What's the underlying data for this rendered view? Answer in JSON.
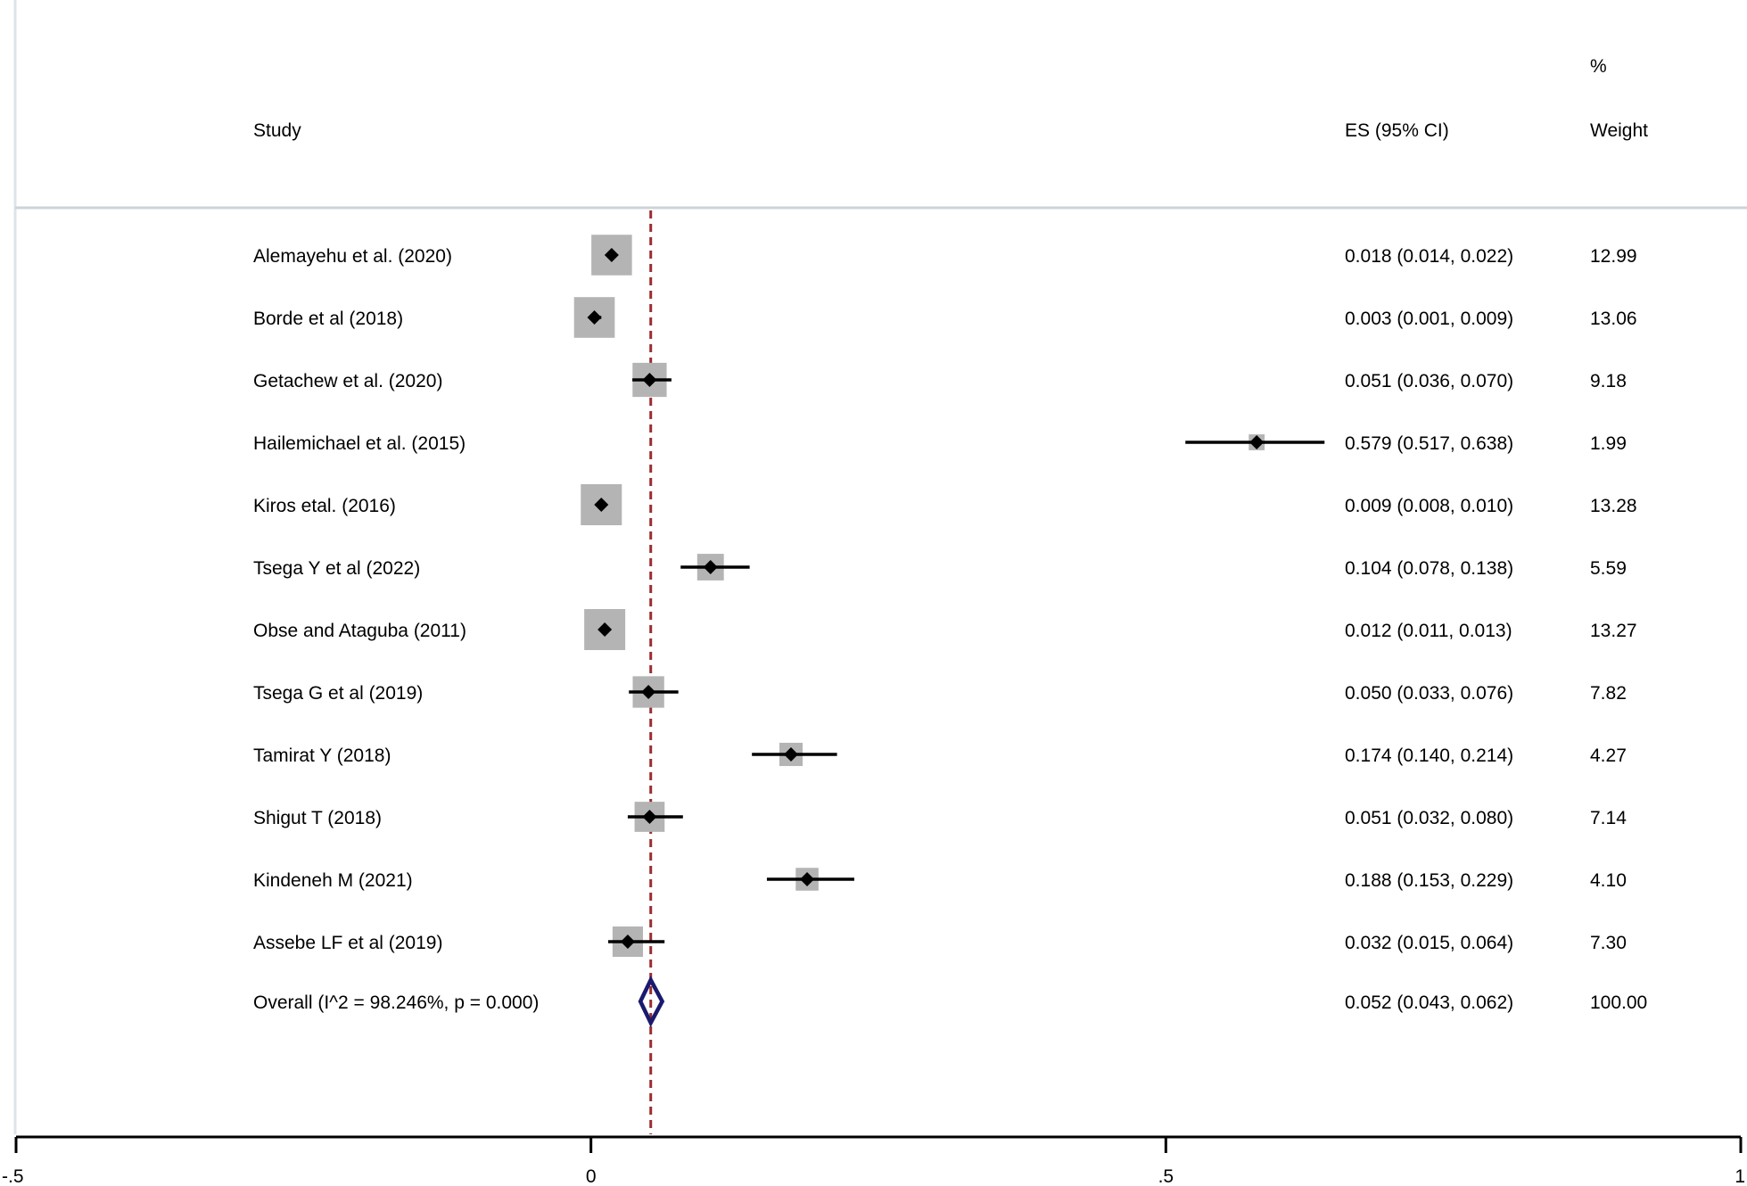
{
  "header": {
    "study": "Study",
    "es": "ES (95% CI)",
    "weight_pct": "%",
    "weight": "Weight"
  },
  "chart_data": {
    "type": "forest",
    "xlim": [
      -0.5,
      1
    ],
    "xticks": [
      -0.5,
      0,
      0.5,
      1
    ],
    "xtick_labels": [
      "-.5",
      "0",
      ".5",
      "1"
    ],
    "reference_line": 0.052,
    "studies": [
      {
        "label": "Alemayehu et al. (2020)",
        "es": 0.018,
        "lo": 0.014,
        "hi": 0.022,
        "es_text": "0.018 (0.014, 0.022)",
        "weight": 12.99,
        "weight_text": "12.99"
      },
      {
        "label": "Borde et al (2018)",
        "es": 0.003,
        "lo": 0.001,
        "hi": 0.009,
        "es_text": "0.003 (0.001, 0.009)",
        "weight": 13.06,
        "weight_text": "13.06"
      },
      {
        "label": "Getachew et al. (2020)",
        "es": 0.051,
        "lo": 0.036,
        "hi": 0.07,
        "es_text": "0.051 (0.036, 0.070)",
        "weight": 9.18,
        "weight_text": "9.18"
      },
      {
        "label": "Hailemichael et al. (2015)",
        "es": 0.579,
        "lo": 0.517,
        "hi": 0.638,
        "es_text": "0.579 (0.517, 0.638)",
        "weight": 1.99,
        "weight_text": "1.99"
      },
      {
        "label": "Kiros etal.  (2016)",
        "es": 0.009,
        "lo": 0.008,
        "hi": 0.01,
        "es_text": "0.009 (0.008, 0.010)",
        "weight": 13.28,
        "weight_text": "13.28"
      },
      {
        "label": "Tsega Y et al (2022)",
        "es": 0.104,
        "lo": 0.078,
        "hi": 0.138,
        "es_text": "0.104 (0.078, 0.138)",
        "weight": 5.59,
        "weight_text": "5.59"
      },
      {
        "label": "Obse and Ataguba (2011)",
        "es": 0.012,
        "lo": 0.011,
        "hi": 0.013,
        "es_text": "0.012 (0.011, 0.013)",
        "weight": 13.27,
        "weight_text": "13.27"
      },
      {
        "label": "Tsega G et al (2019)",
        "es": 0.05,
        "lo": 0.033,
        "hi": 0.076,
        "es_text": "0.050 (0.033, 0.076)",
        "weight": 7.82,
        "weight_text": "7.82"
      },
      {
        "label": "Tamirat Y (2018)",
        "es": 0.174,
        "lo": 0.14,
        "hi": 0.214,
        "es_text": "0.174 (0.140, 0.214)",
        "weight": 4.27,
        "weight_text": "4.27"
      },
      {
        "label": "Shigut T (2018)",
        "es": 0.051,
        "lo": 0.032,
        "hi": 0.08,
        "es_text": "0.051 (0.032, 0.080)",
        "weight": 7.14,
        "weight_text": "7.14"
      },
      {
        "label": "Kindeneh M (2021)",
        "es": 0.188,
        "lo": 0.153,
        "hi": 0.229,
        "es_text": "0.188 (0.153, 0.229)",
        "weight": 4.1,
        "weight_text": "4.10"
      },
      {
        "label": "Assebe LF et al (2019)",
        "es": 0.032,
        "lo": 0.015,
        "hi": 0.064,
        "es_text": "0.032 (0.015, 0.064)",
        "weight": 7.3,
        "weight_text": "7.30"
      }
    ],
    "overall": {
      "label": "Overall  (I^2 = 98.246%, p = 0.000)",
      "es": 0.052,
      "lo": 0.043,
      "hi": 0.062,
      "es_text": "0.052 (0.043, 0.062)",
      "weight_text": "100.00"
    },
    "colors": {
      "box": "#b4b4b4",
      "marker": "#000000",
      "ref_line": "#9b2d30",
      "diamond": "#1a1a6e",
      "axis": "#000000",
      "frame": "#dde4e9"
    }
  }
}
